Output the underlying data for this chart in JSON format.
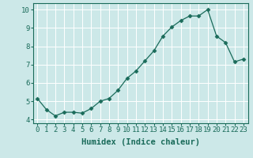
{
  "x": [
    0,
    1,
    2,
    3,
    4,
    5,
    6,
    7,
    8,
    9,
    10,
    11,
    12,
    13,
    14,
    15,
    16,
    17,
    18,
    19,
    20,
    21,
    22,
    23
  ],
  "y": [
    5.15,
    4.55,
    4.2,
    4.4,
    4.4,
    4.35,
    4.6,
    5.0,
    5.15,
    5.6,
    6.25,
    6.65,
    7.2,
    7.75,
    8.55,
    9.05,
    9.4,
    9.65,
    9.65,
    10.0,
    8.55,
    8.2,
    7.15,
    7.3
  ],
  "line_color": "#1a6b5a",
  "marker": "D",
  "marker_size": 2.5,
  "bg_color": "#cce8e8",
  "grid_color": "#ffffff",
  "xlabel": "Humidex (Indice chaleur)",
  "ylabel": "",
  "xlim": [
    -0.5,
    23.5
  ],
  "ylim": [
    3.8,
    10.35
  ],
  "yticks": [
    4,
    5,
    6,
    7,
    8,
    9,
    10
  ],
  "xticks": [
    0,
    1,
    2,
    3,
    4,
    5,
    6,
    7,
    8,
    9,
    10,
    11,
    12,
    13,
    14,
    15,
    16,
    17,
    18,
    19,
    20,
    21,
    22,
    23
  ],
  "tick_label_size": 6.5,
  "xlabel_size": 7.5,
  "spine_color": "#1a6b5a"
}
